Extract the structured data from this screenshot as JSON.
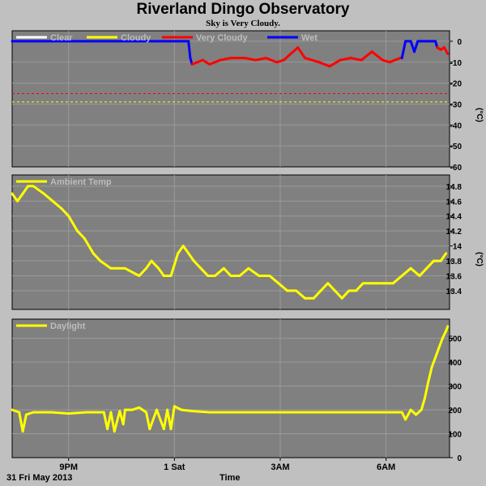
{
  "title": "Riverland Dingo Observatory",
  "subtitle": "Sky is Very Cloudy.",
  "footer": {
    "date": "31 Fri May 2013",
    "xlabel": "Time"
  },
  "colors": {
    "background": "#c0c0c0",
    "panel": "#808080",
    "grid": "#9a9a9a",
    "yellow": "#ffff00",
    "red": "#ff0000",
    "blue": "#0000ff",
    "white": "#ffffff",
    "threshold_red": "#ff0000",
    "threshold_yellow": "#ffff00"
  },
  "x_ticks": [
    {
      "label": "9PM",
      "hours": 21.0
    },
    {
      "label": "1 Sat",
      "hours": 24.0
    },
    {
      "label": "3AM",
      "hours": 27.0
    },
    {
      "label": "6AM",
      "hours": 30.0
    }
  ],
  "chart_data": [
    {
      "type": "line",
      "name": "sky",
      "ylabel": "(°C)",
      "ylim": [
        -60,
        5
      ],
      "yticks": [
        0,
        -10,
        -20,
        -30,
        -40,
        -50,
        -60
      ],
      "grid": true,
      "legend": [
        "Clear",
        "Cloudy",
        "Very Cloudy",
        "Wet"
      ],
      "legend_colors": [
        "#ffffff",
        "#ffff00",
        "#ff0000",
        "#0000ff"
      ],
      "thresholds": [
        {
          "value": -25,
          "color": "#ff0000"
        },
        {
          "value": -29,
          "color": "#ffff00"
        }
      ],
      "series": [
        {
          "name": "Wet",
          "color": "#0000ff",
          "x": [
            19.4,
            20.5,
            21.5,
            22.5,
            23.5,
            24.4,
            24.45,
            24.5
          ],
          "values": [
            0,
            0,
            0,
            0,
            0,
            0,
            -8,
            -11
          ]
        },
        {
          "name": "Very Cloudy",
          "color": "#ff0000",
          "x": [
            24.5,
            24.8,
            25.0,
            25.3,
            25.6,
            26.0,
            26.3,
            26.6,
            26.9,
            27.1,
            27.3,
            27.5,
            27.7,
            27.9,
            28.1,
            28.4,
            28.7,
            29.0,
            29.3,
            29.6,
            29.9,
            30.1,
            30.4,
            30.45
          ],
          "values": [
            -11,
            -9,
            -11,
            -9,
            -8,
            -8,
            -9,
            -8,
            -10,
            -9,
            -6,
            -3,
            -8,
            -9,
            -10,
            -12,
            -9,
            -8,
            -9,
            -5,
            -9,
            -10,
            -8,
            -8
          ]
        },
        {
          "name": "Wet",
          "color": "#0000ff",
          "x": [
            30.45,
            30.55,
            30.7,
            30.8,
            30.9,
            31.0,
            31.2,
            31.4,
            31.45
          ],
          "values": [
            -8,
            0,
            0,
            -5,
            0,
            0,
            0,
            0,
            -3
          ]
        },
        {
          "name": "Very Cloudy",
          "color": "#ff0000",
          "x": [
            31.45,
            31.55,
            31.65,
            31.75
          ],
          "values": [
            -3,
            -4,
            -3,
            -6
          ]
        }
      ]
    },
    {
      "type": "line",
      "name": "ambient",
      "ylabel": "(°C)",
      "ylim": [
        13.15,
        14.95
      ],
      "yticks": [
        14.8,
        14.6,
        14.4,
        14.2,
        14.0,
        13.8,
        13.6,
        13.4
      ],
      "grid": true,
      "legend": [
        "Ambient Temp"
      ],
      "legend_colors": [
        "#ffff00"
      ],
      "series": [
        {
          "name": "Ambient Temp",
          "color": "#ffff00",
          "x": [
            19.4,
            19.55,
            19.7,
            19.85,
            20.0,
            20.3,
            20.55,
            20.8,
            21.0,
            21.25,
            21.45,
            21.7,
            21.9,
            22.2,
            22.6,
            23.0,
            23.2,
            23.35,
            23.55,
            23.7,
            23.9,
            24.1,
            24.25,
            24.4,
            24.55,
            24.75,
            24.95,
            25.15,
            25.4,
            25.6,
            25.85,
            26.1,
            26.4,
            26.7,
            26.95,
            27.2,
            27.45,
            27.7,
            27.95,
            28.15,
            28.35,
            28.55,
            28.75,
            28.95,
            29.15,
            29.35,
            29.55,
            29.75,
            29.95,
            30.2,
            30.45,
            30.7,
            30.95,
            31.15,
            31.35,
            31.55,
            31.7
          ],
          "values": [
            14.7,
            14.6,
            14.7,
            14.8,
            14.8,
            14.7,
            14.6,
            14.5,
            14.4,
            14.2,
            14.1,
            13.9,
            13.8,
            13.7,
            13.7,
            13.6,
            13.7,
            13.8,
            13.7,
            13.6,
            13.6,
            13.9,
            14.0,
            13.9,
            13.8,
            13.7,
            13.6,
            13.6,
            13.7,
            13.6,
            13.6,
            13.7,
            13.6,
            13.6,
            13.5,
            13.4,
            13.4,
            13.3,
            13.3,
            13.4,
            13.5,
            13.4,
            13.3,
            13.4,
            13.4,
            13.5,
            13.5,
            13.5,
            13.5,
            13.5,
            13.6,
            13.7,
            13.6,
            13.7,
            13.8,
            13.8,
            13.9
          ]
        }
      ]
    },
    {
      "type": "line",
      "name": "daylight",
      "ylim": [
        0,
        580
      ],
      "yticks": [
        500,
        400,
        300,
        200,
        100,
        0
      ],
      "grid": true,
      "legend": [
        "Daylight"
      ],
      "legend_colors": [
        "#ffff00"
      ],
      "series": [
        {
          "name": "Daylight",
          "color": "#ffff00",
          "x": [
            19.4,
            19.6,
            19.7,
            19.8,
            20.0,
            20.5,
            21.0,
            21.5,
            22.0,
            22.1,
            22.2,
            22.3,
            22.45,
            22.55,
            22.6,
            22.8,
            23.0,
            23.2,
            23.3,
            23.5,
            23.7,
            23.8,
            23.9,
            24.0,
            24.2,
            24.5,
            25.0,
            26.0,
            27.0,
            28.0,
            29.0,
            30.0,
            30.45,
            30.55,
            30.7,
            30.85,
            31.0,
            31.1,
            31.2,
            31.3,
            31.4,
            31.5,
            31.6,
            31.7,
            31.75
          ],
          "values": [
            200,
            190,
            110,
            180,
            190,
            190,
            185,
            190,
            190,
            120,
            190,
            110,
            195,
            140,
            200,
            200,
            210,
            190,
            120,
            200,
            120,
            200,
            120,
            215,
            200,
            195,
            190,
            190,
            190,
            190,
            190,
            190,
            190,
            160,
            200,
            180,
            200,
            250,
            320,
            380,
            420,
            460,
            500,
            530,
            550
          ]
        }
      ]
    }
  ]
}
